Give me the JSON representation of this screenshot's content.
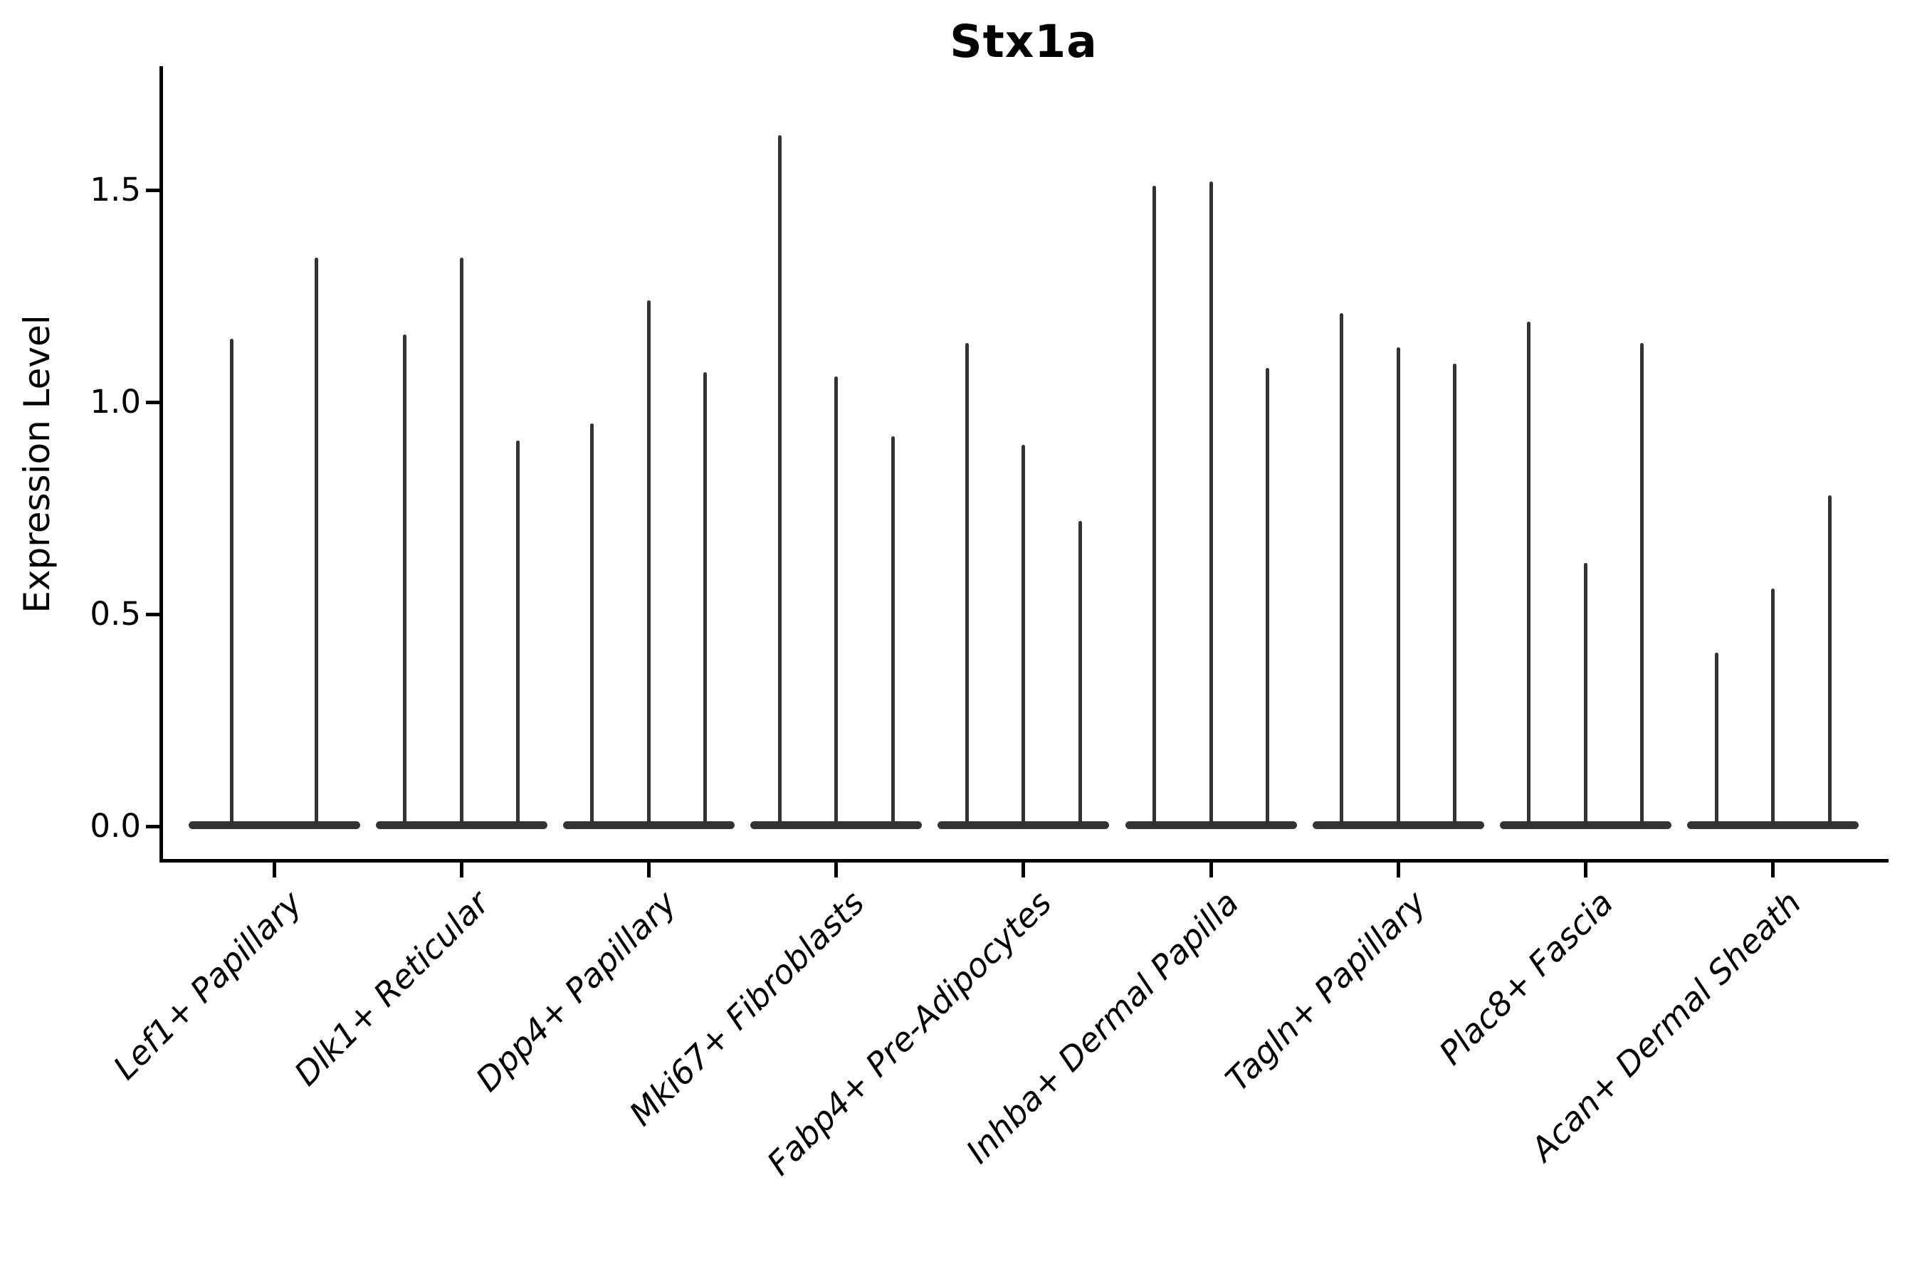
{
  "chart_data": {
    "type": "violin",
    "title": "Stx1a",
    "ylabel": "Expression Level",
    "xlabel": "",
    "ytick_labels": [
      "0.0",
      "0.5",
      "1.0",
      "1.5"
    ],
    "ytick_values": [
      0.0,
      0.5,
      1.0,
      1.5
    ],
    "ylim": [
      -0.08,
      1.79
    ],
    "grid": false,
    "legend": "none",
    "violin_color": "#333333",
    "axis_color": "#000000",
    "categories": [
      "Lef1+ Papillary",
      "Dlk1+ Reticular",
      "Dpp4+ Papillary",
      "Mki67+ Fibroblasts",
      "Fabp4+ Pre-Adipocytes",
      "Inhba+ Dermal Papilla",
      "Tagln+ Papillary",
      "Plac8+ Fascia",
      "Acan+ Dermal Sheath"
    ],
    "groups": [
      {
        "label": "Lef1+ Papillary",
        "violins": [
          1.15,
          1.34
        ]
      },
      {
        "label": "Dlk1+ Reticular",
        "violins": [
          1.16,
          1.34,
          0.91
        ]
      },
      {
        "label": "Dpp4+ Papillary",
        "violins": [
          0.95,
          1.24,
          1.07
        ]
      },
      {
        "label": "Mki67+ Fibroblasts",
        "violins": [
          1.63,
          1.06,
          0.92
        ]
      },
      {
        "label": "Fabp4+ Pre-Adipocytes",
        "violins": [
          1.14,
          0.9,
          0.72
        ]
      },
      {
        "label": "Inhba+ Dermal Papilla",
        "violins": [
          1.51,
          1.52,
          1.08
        ]
      },
      {
        "label": "Tagln+ Papillary",
        "violins": [
          1.21,
          1.13,
          1.09
        ]
      },
      {
        "label": "Plac8+ Fascia",
        "violins": [
          1.19,
          0.62,
          1.14
        ]
      },
      {
        "label": "Acan+ Dermal Sheath",
        "violins": [
          0.41,
          0.56,
          0.78
        ]
      }
    ]
  }
}
